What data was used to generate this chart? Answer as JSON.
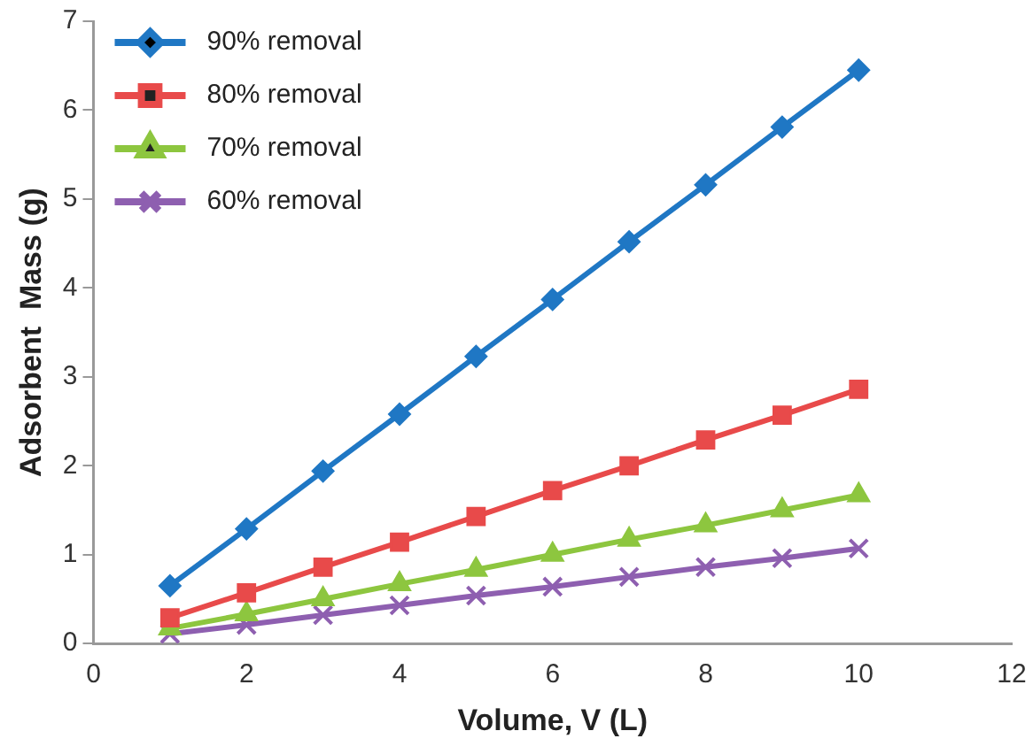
{
  "chart_data": {
    "type": "line",
    "xlabel": "Volume, V (L)",
    "ylabel": "Adsorbent  Mass (g)",
    "x": [
      1,
      2,
      3,
      4,
      5,
      6,
      7,
      8,
      9,
      10
    ],
    "xlim": [
      0,
      12
    ],
    "xticks": [
      0,
      2,
      4,
      6,
      8,
      10,
      12
    ],
    "ylim": [
      0,
      7
    ],
    "yticks": [
      0,
      1,
      2,
      3,
      4,
      5,
      6,
      7
    ],
    "grid": false,
    "legend": "top left",
    "line_style": "solid",
    "series": [
      {
        "name": "90% removal",
        "color": "#1f77c4",
        "marker": "diamond",
        "values": [
          0.65,
          1.29,
          1.94,
          2.58,
          3.23,
          3.87,
          4.52,
          5.16,
          5.81,
          6.45
        ]
      },
      {
        "name": "80% removal",
        "color": "#e84a4a",
        "marker": "square",
        "values": [
          0.29,
          0.57,
          0.86,
          1.14,
          1.43,
          1.72,
          2.0,
          2.29,
          2.57,
          2.86
        ]
      },
      {
        "name": "70% removal",
        "color": "#8dc63f",
        "marker": "triangle",
        "values": [
          0.17,
          0.33,
          0.5,
          0.67,
          0.83,
          1.0,
          1.17,
          1.33,
          1.5,
          1.67
        ]
      },
      {
        "name": "60% removal",
        "color": "#8e5fb0",
        "marker": "cross",
        "values": [
          0.11,
          0.21,
          0.32,
          0.43,
          0.54,
          0.64,
          0.75,
          0.86,
          0.96,
          1.07
        ]
      }
    ]
  }
}
